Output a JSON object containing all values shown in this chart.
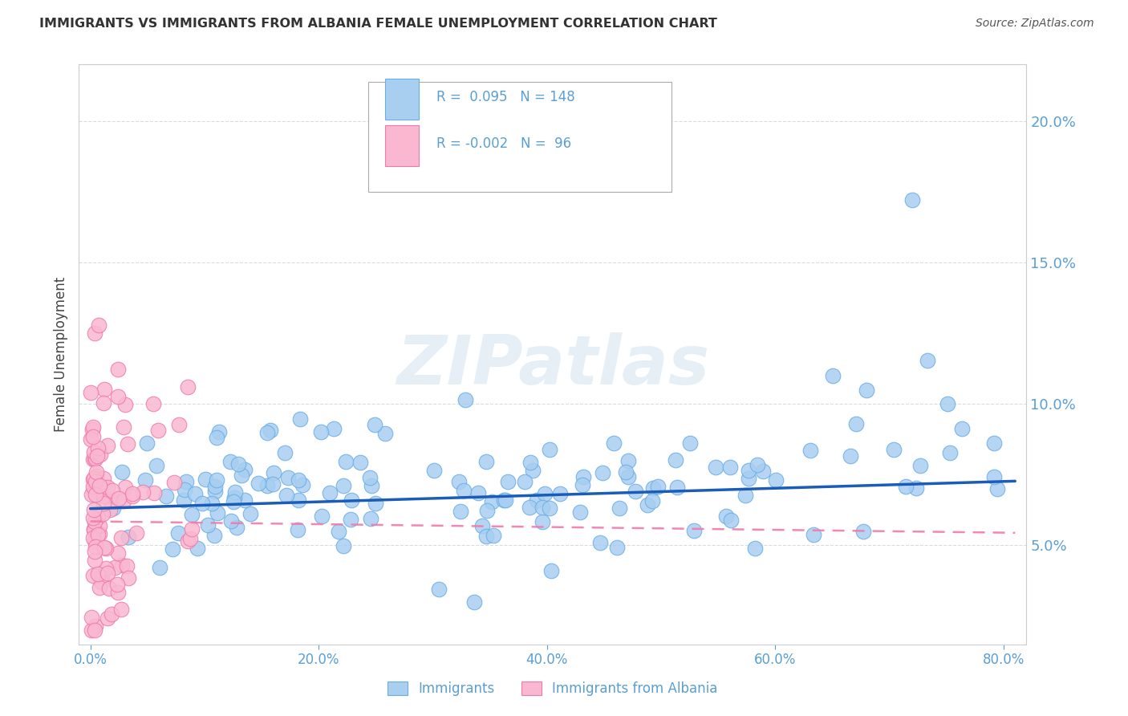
{
  "title": "IMMIGRANTS VS IMMIGRANTS FROM ALBANIA FEMALE UNEMPLOYMENT CORRELATION CHART",
  "source": "Source: ZipAtlas.com",
  "ylabel": "Female Unemployment",
  "xlabel_vals": [
    0,
    20,
    40,
    60,
    80
  ],
  "ylabel_vals": [
    5,
    10,
    15,
    20
  ],
  "ylim": [
    1.5,
    22.0
  ],
  "xlim": [
    -1,
    82
  ],
  "blue_R": 0.095,
  "blue_N": 148,
  "pink_R": -0.002,
  "pink_N": 96,
  "blue_color": "#A8CEF0",
  "blue_edge": "#6AAEE8",
  "pink_color": "#F9B8D0",
  "pink_edge": "#F07AAA",
  "trend_blue": "#1A5CB8",
  "trend_pink": "#F07AAA",
  "legend_label_blue": "Immigrants",
  "legend_label_pink": "Immigrants from Albania",
  "watermark": "ZIPatlas",
  "background_color": "#FFFFFF",
  "grid_color": "#CCCCCC",
  "axis_color": "#5A9FD4",
  "title_color": "#333333",
  "source_color": "#555555"
}
